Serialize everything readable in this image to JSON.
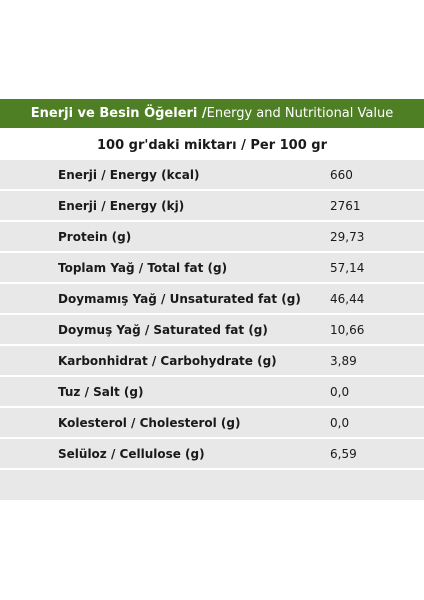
{
  "header": {
    "title_bold": "Enerji ve Besin Öğeleri /",
    "title_light": " Energy and Nutritional Value"
  },
  "subheader": {
    "text": "100 gr'daki miktarı / Per 100 gr"
  },
  "rows": [
    {
      "label": "Enerji / Energy (kcal)",
      "value": "660"
    },
    {
      "label": "Enerji / Energy (kj)",
      "value": "2761"
    },
    {
      "label": "Protein (g)",
      "value": "29,73"
    },
    {
      "label": "Toplam Yağ / Total fat (g)",
      "value": "57,14"
    },
    {
      "label": "Doymamış Yağ / Unsaturated fat (g)",
      "value": "46,44"
    },
    {
      "label": "Doymuş Yağ / Saturated fat (g)",
      "value": "10,66"
    },
    {
      "label": "Karbonhidrat / Carbohydrate (g)",
      "value": "3,89"
    },
    {
      "label": "Tuz / Salt (g)",
      "value": "0,0"
    },
    {
      "label": "Kolesterol / Cholesterol (g)",
      "value": "0,0"
    },
    {
      "label": "Selüloz / Cellulose (g)",
      "value": "6,59"
    }
  ]
}
